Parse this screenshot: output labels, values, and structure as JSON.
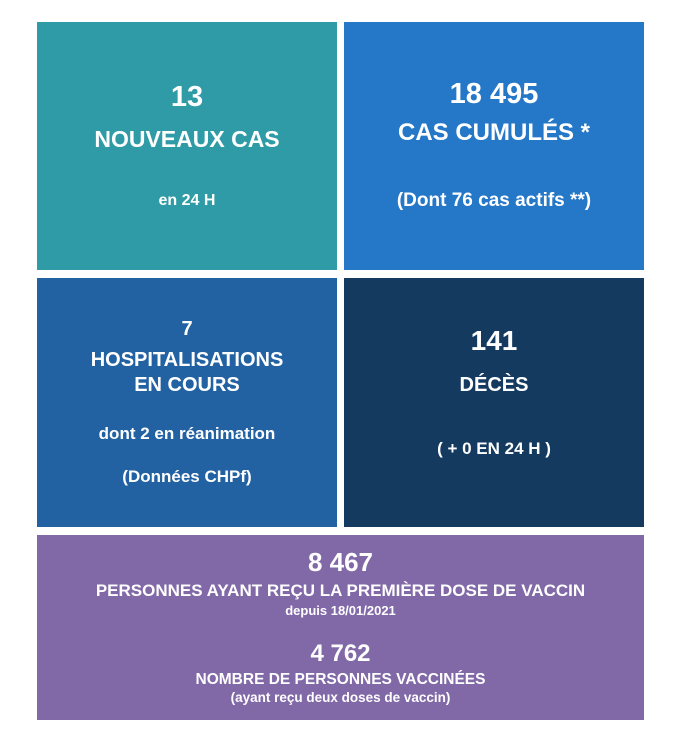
{
  "colors": {
    "background": "#ffffff",
    "text": "#ffffff",
    "new_cases_bg": "#2e9ba6",
    "cumulative_cases_bg": "#2577c8",
    "hospitalizations_bg": "#2262a2",
    "deaths_bg": "#143a60",
    "vaccination_bg": "#8169a8"
  },
  "cards": {
    "new_cases": {
      "value": "13",
      "label": "NOUVEAUX CAS",
      "sub": "en 24 H"
    },
    "cumulative_cases": {
      "value": "18 495",
      "label": "CAS CUMULÉS *",
      "sub": "(Dont 76 cas actifs **)"
    },
    "hospitalizations": {
      "value": "7",
      "label": "HOSPITALISATIONS\nEN COURS",
      "sub1": "dont 2 en réanimation",
      "sub2": "(Données CHPf)"
    },
    "deaths": {
      "value": "141",
      "label": "DÉCÈS",
      "sub": "( + 0 EN 24 H )"
    },
    "vaccination": {
      "first_dose_value": "8 467",
      "first_dose_label": "PERSONNES AYANT REÇU LA PREMIÈRE DOSE DE VACCIN",
      "first_dose_sub": "depuis 18/01/2021",
      "vaccinated_value": "4 762",
      "vaccinated_label": "NOMBRE DE PERSONNES VACCINÉES",
      "vaccinated_sub": "(ayant reçu deux doses de vaccin)"
    }
  },
  "chart_data": {
    "type": "table",
    "metrics": [
      {
        "value": 13,
        "label": "NOUVEAUX CAS",
        "note": "en 24 H"
      },
      {
        "value": 18495,
        "label": "CAS CUMULÉS *",
        "note": "(Dont 76 cas actifs **)",
        "active_cases": 76
      },
      {
        "value": 7,
        "label": "HOSPITALISATIONS EN COURS",
        "note": "dont 2 en réanimation",
        "source": "(Données CHPf)",
        "icu": 2
      },
      {
        "value": 141,
        "label": "DÉCÈS",
        "note": "( + 0 EN 24 H )",
        "change_24h": 0
      },
      {
        "value": 8467,
        "label": "PERSONNES AYANT REÇU LA PREMIÈRE DOSE DE VACCIN",
        "note": "depuis 18/01/2021"
      },
      {
        "value": 4762,
        "label": "NOMBRE DE PERSONNES VACCINÉES",
        "note": "(ayant reçu deux doses de vaccin)"
      }
    ]
  }
}
